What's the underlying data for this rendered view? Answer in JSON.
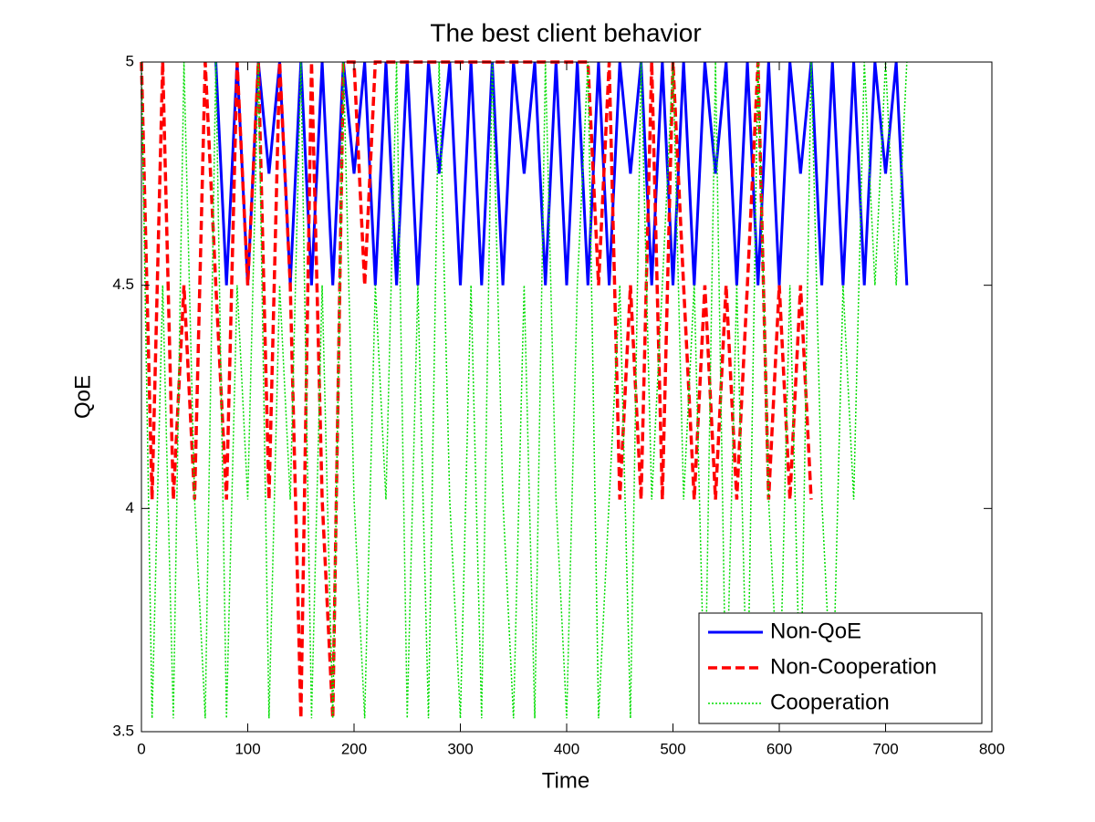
{
  "chart_data": {
    "type": "line",
    "title": "The best client behavior",
    "x_label": "Time",
    "y_label": "QoE",
    "xlim": [
      0,
      800
    ],
    "ylim": [
      3.5,
      5
    ],
    "xticks": [
      0,
      100,
      200,
      300,
      400,
      500,
      600,
      700,
      800
    ],
    "yticks": [
      3.5,
      4,
      4.5,
      5
    ],
    "legend": "lower-right",
    "grid": false,
    "series": [
      {
        "name": "Non-QoE",
        "color": "#0000ff",
        "style": "solid",
        "x": [
          70,
          80,
          90,
          100,
          110,
          120,
          130,
          140,
          150,
          160,
          170,
          180,
          190,
          200,
          210,
          220,
          230,
          240,
          250,
          260,
          270,
          280,
          290,
          300,
          310,
          320,
          330,
          340,
          350,
          360,
          370,
          380,
          390,
          400,
          410,
          420,
          430,
          440,
          450,
          460,
          470,
          480,
          490,
          500,
          510,
          520,
          530,
          540,
          550,
          560,
          570,
          580,
          590,
          600,
          610,
          620,
          630,
          640,
          650,
          660,
          670,
          680,
          690,
          700,
          710,
          720
        ],
        "values": [
          5,
          4.5,
          5,
          4.5,
          5,
          4.75,
          5,
          4.5,
          5,
          4.5,
          5,
          4.5,
          5,
          4.75,
          5,
          4.5,
          5,
          4.5,
          5,
          4.5,
          5,
          4.75,
          5,
          4.5,
          5,
          4.5,
          5,
          4.5,
          5,
          4.75,
          5,
          4.5,
          5,
          4.5,
          5,
          4.5,
          5,
          4.5,
          5,
          4.75,
          5,
          4.5,
          5,
          4.5,
          5,
          4.5,
          5,
          4.75,
          5,
          4.5,
          5,
          4.5,
          5,
          4.5,
          5,
          4.75,
          5,
          4.5,
          5,
          4.5,
          5,
          4.5,
          5,
          4.75,
          5,
          4.5
        ]
      },
      {
        "name": "Non-Cooperation",
        "color": "#ff0000",
        "style": "dashed",
        "x": [
          0,
          10,
          20,
          30,
          40,
          50,
          60,
          70,
          80,
          90,
          100,
          110,
          120,
          130,
          140,
          150,
          160,
          170,
          180,
          190,
          200,
          210,
          220,
          230,
          240,
          250,
          260,
          270,
          280,
          290,
          300,
          310,
          320,
          330,
          340,
          350,
          360,
          370,
          380,
          390,
          400,
          410,
          420,
          430,
          440,
          450,
          460,
          470,
          480,
          490,
          500,
          510,
          520,
          530,
          540,
          550,
          560,
          570,
          580,
          590,
          600,
          610,
          620,
          630
        ],
        "values": [
          5,
          4.02,
          5,
          4.02,
          4.5,
          4.02,
          5,
          4.5,
          4.02,
          5,
          4.5,
          5,
          4.02,
          5,
          4.5,
          3.53,
          5,
          4.02,
          3.53,
          5,
          5,
          4.5,
          5,
          5,
          5,
          5,
          5,
          5,
          5,
          5,
          5,
          5,
          5,
          5,
          5,
          5,
          5,
          5,
          5,
          5,
          5,
          5,
          5,
          4.5,
          5,
          4.02,
          4.5,
          4.02,
          5,
          4.02,
          5,
          4.5,
          4.02,
          4.5,
          4.02,
          4.5,
          4.02,
          4.5,
          5,
          4.02,
          4.5,
          4.02,
          4.5,
          4.02
        ]
      },
      {
        "name": "Cooperation",
        "color": "#00dd00",
        "style": "dotted",
        "x": [
          0,
          10,
          20,
          30,
          40,
          50,
          60,
          70,
          80,
          90,
          100,
          110,
          120,
          130,
          140,
          150,
          160,
          170,
          180,
          190,
          200,
          210,
          220,
          230,
          240,
          250,
          260,
          270,
          280,
          290,
          300,
          310,
          320,
          330,
          340,
          350,
          360,
          370,
          380,
          390,
          400,
          410,
          420,
          430,
          440,
          450,
          460,
          470,
          480,
          490,
          500,
          510,
          520,
          530,
          540,
          550,
          560,
          570,
          580,
          590,
          600,
          610,
          620,
          630,
          640,
          650,
          660,
          670,
          680,
          690,
          700,
          710,
          720
        ],
        "values": [
          5,
          3.53,
          4.5,
          3.53,
          5,
          4.02,
          3.53,
          5,
          3.53,
          4.5,
          4.02,
          5,
          3.53,
          4.5,
          4.02,
          5,
          3.53,
          4.5,
          3.53,
          5,
          4.02,
          3.53,
          4.5,
          4.02,
          5,
          3.53,
          4.5,
          3.53,
          5,
          4.02,
          3.53,
          4.5,
          3.53,
          5,
          4.02,
          3.53,
          4.5,
          3.53,
          5,
          4.02,
          3.53,
          4.5,
          5,
          3.53,
          4.02,
          4.5,
          3.53,
          5,
          4.02,
          4.5,
          5,
          4.02,
          4.5,
          3.53,
          5,
          3.53,
          4.5,
          3.53,
          5,
          4.02,
          3.53,
          4.5,
          3.53,
          5,
          4.02,
          3.53,
          4.5,
          4.02,
          5,
          4.5,
          5,
          4.5,
          5
        ]
      }
    ]
  }
}
